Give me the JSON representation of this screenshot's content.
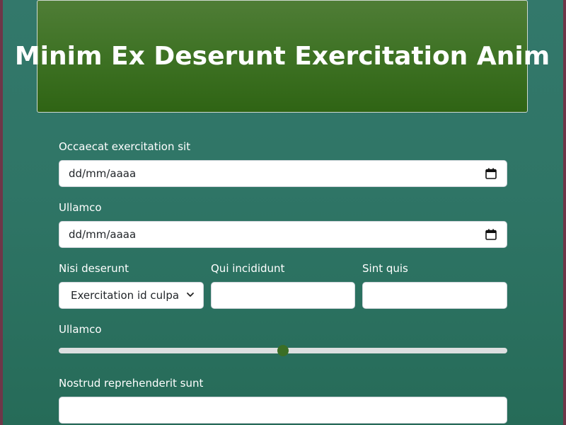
{
  "header": {
    "title": "Minim Ex Deserunt Exercitation Anim"
  },
  "form": {
    "date1": {
      "label": "Occaecat exercitation sit",
      "placeholder": "dd/mm/aaaa"
    },
    "date2": {
      "label": "Ullamco",
      "placeholder": "dd/mm/aaaa"
    },
    "select1": {
      "label": "Nisi deserunt",
      "value": "Exercitation id culpa"
    },
    "text1": {
      "label": "Qui incididunt",
      "value": ""
    },
    "text2": {
      "label": "Sint quis",
      "value": ""
    },
    "range": {
      "label": "Ullamco",
      "value_fraction": 0.5
    },
    "text3": {
      "label": "Nostrud reprehenderit sunt",
      "value": ""
    }
  },
  "colors": {
    "background_teal": "#2f7566",
    "header_green": "#3e7224",
    "slider_thumb": "#3b6e25",
    "frame_border": "#6e3648"
  },
  "icons": {
    "date_picker": "calendar-icon",
    "select_arrow": "chevron-down-icon"
  }
}
